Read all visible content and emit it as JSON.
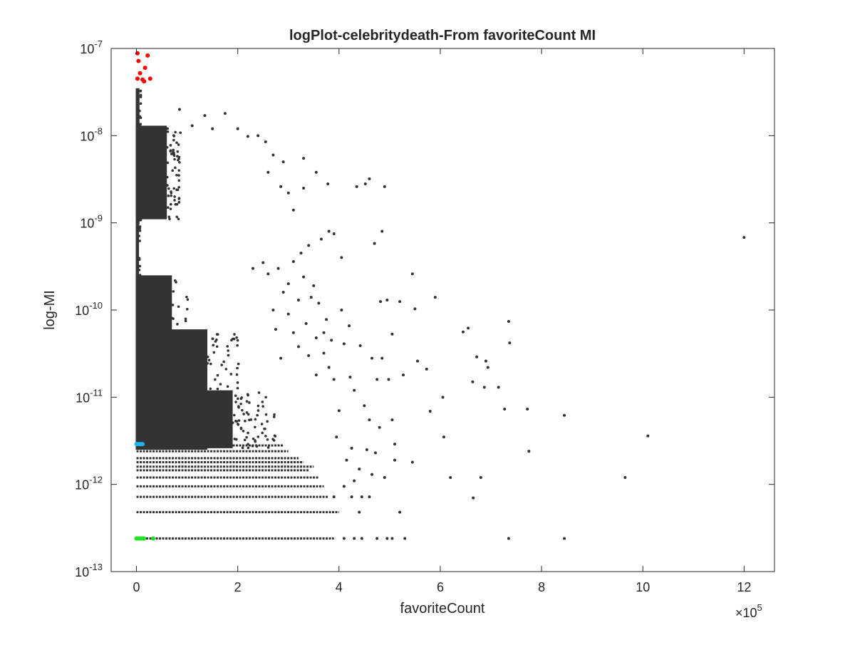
{
  "chart_data": {
    "type": "scatter",
    "title": "logPlot-celebritydeath-From favoriteCount MI",
    "xlabel": "favoriteCount",
    "ylabel": "log-MI",
    "x_scale_exponent_label": {
      "base": "×10",
      "exp": "5"
    },
    "xlim": [
      -0.5,
      12.6
    ],
    "ylim": [
      1e-13,
      1e-07
    ],
    "y_scale": "log",
    "x_ticks": [
      0,
      2,
      4,
      6,
      8,
      10,
      12
    ],
    "x_tick_labels": [
      "0",
      "2",
      "4",
      "6",
      "8",
      "10",
      "12"
    ],
    "y_ticks": [
      1e-13,
      1e-12,
      1e-11,
      1e-10,
      1e-09,
      1e-08,
      1e-07
    ],
    "y_tick_labels": [
      {
        "base": "10",
        "exp": "-13"
      },
      {
        "base": "10",
        "exp": "-12"
      },
      {
        "base": "10",
        "exp": "-11"
      },
      {
        "base": "10",
        "exp": "-10"
      },
      {
        "base": "10",
        "exp": "-9"
      },
      {
        "base": "10",
        "exp": "-8"
      },
      {
        "base": "10",
        "exp": "-7"
      }
    ],
    "grid": false,
    "legend": "none",
    "series": [
      {
        "color": "#333333",
        "dense_core": [
          {
            "x_max": 0.06,
            "y_min": 9.5e-10,
            "y_max": 3.5e-08
          },
          {
            "x_max": 0.6,
            "y_min": 1.1e-09,
            "y_max": 1.3e-08
          },
          {
            "x_max": 0.05,
            "y_min": 2.5e-12,
            "y_max": 9.5e-10
          },
          {
            "x_max": 0.7,
            "y_min": 2.5e-12,
            "y_max": 2.5e-10
          },
          {
            "x_max": 1.4,
            "y_min": 2.5e-12,
            "y_max": 6e-11
          },
          {
            "x_max": 1.9,
            "y_min": 2.6e-12,
            "y_max": 1.2e-11
          }
        ],
        "bands": [
          {
            "y": 2.8e-12,
            "x_max": 2.9
          },
          {
            "y": 2.4e-12,
            "x_max": 3.0
          },
          {
            "y": 2e-12,
            "x_max": 3.2
          },
          {
            "y": 1.8e-12,
            "x_max": 3.3
          },
          {
            "y": 1.6e-12,
            "x_max": 3.5
          },
          {
            "y": 1.45e-12,
            "x_max": 3.4
          },
          {
            "y": 1.2e-12,
            "x_max": 3.6
          },
          {
            "y": 9.5e-13,
            "x_max": 3.7
          },
          {
            "y": 7.2e-13,
            "x_max": 3.8
          },
          {
            "y": 4.8e-13,
            "x_max": 4.0
          },
          {
            "y": 2.4e-13,
            "x_max": 3.9
          }
        ],
        "points": [
          [
            12.0,
            6.8e-10
          ],
          [
            10.1,
            3.6e-12
          ],
          [
            9.65,
            1.2e-12
          ],
          [
            8.45,
            6.2e-12
          ],
          [
            8.45,
            2.4e-13
          ],
          [
            7.35,
            2.4e-13
          ],
          [
            7.35,
            7.4e-11
          ],
          [
            7.37,
            4.2e-11
          ],
          [
            7.72,
            7.3e-12
          ],
          [
            7.75,
            2.4e-12
          ],
          [
            7.27,
            7.3e-12
          ],
          [
            7.15,
            1.3e-11
          ],
          [
            6.87,
            1.3e-11
          ],
          [
            6.72,
            2.9e-11
          ],
          [
            6.9,
            2.6e-11
          ],
          [
            6.94,
            2.2e-11
          ],
          [
            6.64,
            1.5e-11
          ],
          [
            6.45,
            5.6e-11
          ],
          [
            6.55,
            6.2e-11
          ],
          [
            6.65,
            7e-13
          ],
          [
            6.8,
            1.2e-12
          ],
          [
            6.2,
            1.2e-12
          ],
          [
            6.05,
            1e-11
          ],
          [
            6.07,
            3.5e-12
          ],
          [
            5.9,
            1.4e-10
          ],
          [
            5.73,
            2.1e-11
          ],
          [
            5.55,
            2.6e-11
          ],
          [
            5.8,
            6.9e-12
          ],
          [
            5.27,
            1.8e-11
          ],
          [
            5.3,
            2.4e-13
          ],
          [
            5.45,
            1.8e-12
          ],
          [
            5.1,
            1.9e-12
          ],
          [
            5.2,
            4.8e-13
          ],
          [
            4.4,
            4.8e-13
          ],
          [
            5.5,
            1.03e-10
          ],
          [
            5.45,
            2.6e-10
          ],
          [
            5.05,
            5.3e-11
          ],
          [
            4.85,
            8e-10
          ],
          [
            4.85,
            2.8e-11
          ],
          [
            4.65,
            2.8e-11
          ],
          [
            4.75,
            1.6e-11
          ],
          [
            4.22,
            1.7e-11
          ],
          [
            4.42,
            3.9e-11
          ],
          [
            4.98,
            1.6e-11
          ],
          [
            5.05,
            5.5e-12
          ],
          [
            4.6,
            3.2e-09
          ],
          [
            4.35,
            2.6e-09
          ],
          [
            4.52,
            2.8e-09
          ],
          [
            4.9,
            2.6e-09
          ],
          [
            3.3,
            5.5e-09
          ],
          [
            3.3,
            2.5e-09
          ],
          [
            3.55,
            3.8e-09
          ],
          [
            3.1,
            1.4e-09
          ],
          [
            3.78,
            2.8e-09
          ],
          [
            3.8,
            8e-10
          ],
          [
            3.9,
            7.5e-10
          ],
          [
            4.05,
            4e-10
          ],
          [
            4.2,
            6.6e-11
          ],
          [
            4.05,
            1e-10
          ],
          [
            4.1,
            4.1e-11
          ],
          [
            3.4,
            5.5e-10
          ],
          [
            4.7,
            5.8e-10
          ],
          [
            4.82,
            1.25e-10
          ],
          [
            4.95,
            1.3e-10
          ],
          [
            5.2,
            1.25e-10
          ],
          [
            3.6,
            1.2e-10
          ],
          [
            3.7,
            5.5e-11
          ],
          [
            3.8,
            2.2e-11
          ],
          [
            3.55,
            1.8e-11
          ],
          [
            3.9,
            1.6e-11
          ],
          [
            4.0,
            7e-12
          ],
          [
            4.3,
            1.2e-11
          ],
          [
            4.5,
            8e-12
          ],
          [
            4.6,
            5.5e-12
          ],
          [
            4.8,
            4.5e-12
          ],
          [
            3.95,
            3.5e-12
          ],
          [
            4.25,
            2.6e-12
          ],
          [
            4.55,
            2.5e-12
          ],
          [
            4.72,
            2.3e-12
          ],
          [
            5.1,
            2.9e-12
          ],
          [
            4.15,
            1.9e-12
          ],
          [
            4.4,
            1.5e-12
          ],
          [
            4.65,
            1.3e-12
          ],
          [
            4.9,
            1.2e-12
          ],
          [
            4.3,
            1.1e-12
          ],
          [
            4.1,
            9.5e-13
          ],
          [
            4.25,
            7.2e-13
          ],
          [
            4.45,
            7.2e-13
          ],
          [
            4.6,
            7.2e-13
          ],
          [
            3.9,
            7.2e-13
          ],
          [
            4.3,
            2.4e-13
          ],
          [
            4.45,
            2.4e-13
          ],
          [
            4.75,
            2.4e-13
          ],
          [
            4.95,
            2.4e-13
          ],
          [
            5.05,
            2.4e-13
          ],
          [
            4.1,
            2.4e-13
          ],
          [
            2.4,
            1e-08
          ],
          [
            2.2,
            9.8e-09
          ],
          [
            2.55,
            8.5e-09
          ],
          [
            2.7,
            6e-09
          ],
          [
            2.0,
            1.2e-08
          ],
          [
            1.5,
            1.2e-08
          ],
          [
            1.35,
            1.7e-08
          ],
          [
            1.75,
            1.8e-08
          ],
          [
            0.85,
            2e-08
          ],
          [
            1.1,
            1.3e-08
          ],
          [
            2.9,
            5e-09
          ],
          [
            2.6,
            3.8e-09
          ],
          [
            2.85,
            2.6e-09
          ],
          [
            3.0,
            2.2e-09
          ],
          [
            3.65,
            6.5e-10
          ],
          [
            3.25,
            4.5e-10
          ],
          [
            3.1,
            3.6e-10
          ],
          [
            2.8,
            3e-10
          ],
          [
            3.0,
            2e-10
          ],
          [
            3.3,
            2.4e-10
          ],
          [
            3.5,
            1.9e-10
          ],
          [
            3.45,
            1.4e-10
          ],
          [
            3.2,
            1.3e-10
          ],
          [
            3.75,
            7.8e-11
          ],
          [
            3.35,
            7e-11
          ],
          [
            3.55,
            4.8e-11
          ],
          [
            3.2,
            3.8e-11
          ],
          [
            3.4,
            3e-11
          ],
          [
            3.7,
            3.2e-11
          ],
          [
            3.85,
            4.5e-11
          ],
          [
            2.9,
            1.6e-10
          ],
          [
            2.5,
            3.5e-10
          ],
          [
            2.6,
            2.6e-10
          ],
          [
            2.3,
            3e-10
          ],
          [
            2.7,
            1e-10
          ],
          [
            3.0,
            9e-11
          ],
          [
            2.75,
            6e-11
          ],
          [
            3.1,
            5.5e-11
          ],
          [
            2.85,
            2.8e-11
          ]
        ]
      },
      {
        "color": "#ff0000",
        "points": [
          [
            0.02,
            8.8e-08
          ],
          [
            0.22,
            8.3e-08
          ],
          [
            0.04,
            7.2e-08
          ],
          [
            0.17,
            6e-08
          ],
          [
            0.07,
            5.2e-08
          ],
          [
            0.02,
            4.5e-08
          ],
          [
            0.12,
            4.4e-08
          ],
          [
            0.27,
            4.5e-08
          ],
          [
            0.15,
            4.2e-08
          ]
        ]
      },
      {
        "color": "#1fb4f0",
        "points": [
          [
            0.0,
            2.9e-12
          ],
          [
            0.03,
            2.9e-12
          ],
          [
            0.06,
            2.9e-12
          ],
          [
            0.09,
            2.9e-12
          ],
          [
            0.12,
            2.9e-12
          ]
        ]
      },
      {
        "color": "#22e022",
        "points": [
          [
            0.0,
            2.4e-13
          ],
          [
            0.03,
            2.4e-13
          ],
          [
            0.06,
            2.4e-13
          ],
          [
            0.09,
            2.4e-13
          ],
          [
            0.12,
            2.4e-13
          ],
          [
            0.15,
            2.4e-13
          ],
          [
            0.33,
            2.4e-13
          ]
        ]
      }
    ]
  }
}
